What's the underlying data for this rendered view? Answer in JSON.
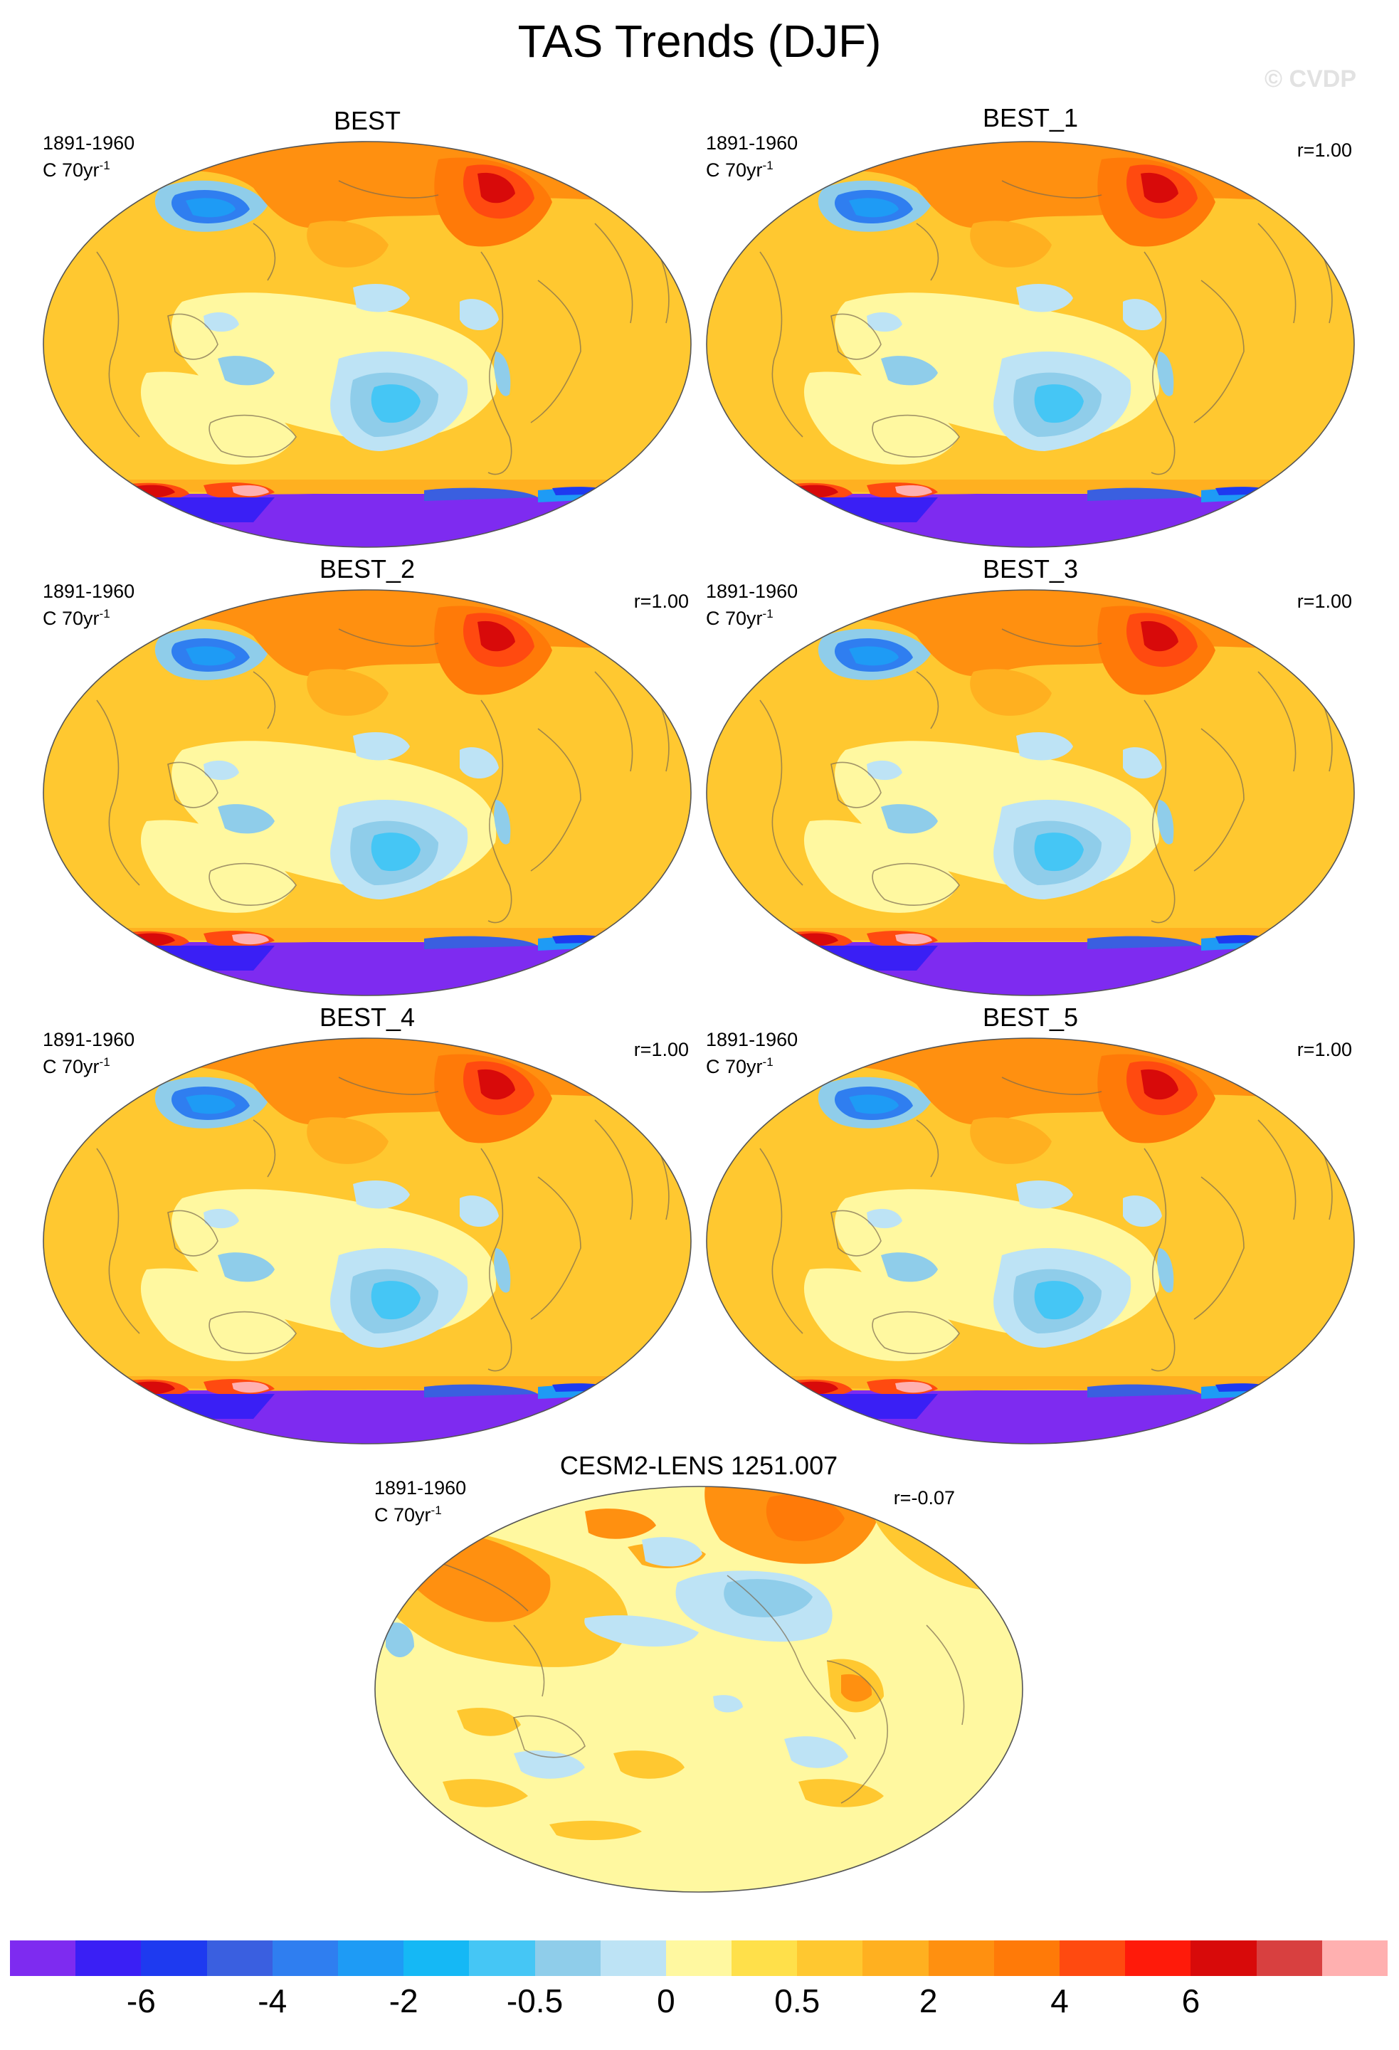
{
  "figure": {
    "title": "TAS Trends (DJF)",
    "credit": "© CVDP"
  },
  "panels": [
    {
      "title": "BEST",
      "period": "1891-1960",
      "units_main": "C 70yr",
      "units_sup": "-1",
      "corr": ""
    },
    {
      "title": "BEST_1",
      "period": "1891-1960",
      "units_main": "C 70yr",
      "units_sup": "-1",
      "corr": "r=1.00"
    },
    {
      "title": "BEST_2",
      "period": "1891-1960",
      "units_main": "C 70yr",
      "units_sup": "-1",
      "corr": "r=1.00"
    },
    {
      "title": "BEST_3",
      "period": "1891-1960",
      "units_main": "C 70yr",
      "units_sup": "-1",
      "corr": "r=1.00"
    },
    {
      "title": "BEST_4",
      "period": "1891-1960",
      "units_main": "C 70yr",
      "units_sup": "-1",
      "corr": "r=1.00"
    },
    {
      "title": "BEST_5",
      "period": "1891-1960",
      "units_main": "C 70yr",
      "units_sup": "-1",
      "corr": "r=1.00"
    },
    {
      "title": "CESM2-LENS 1251.007",
      "period": "1891-1960",
      "units_main": "C 70yr",
      "units_sup": "-1",
      "corr": "r=-0.07"
    }
  ],
  "colorbar": {
    "colors": [
      "#7e2bf0",
      "#3a1ff5",
      "#1e3af0",
      "#3a5fe0",
      "#2f7ef0",
      "#1e9bf5",
      "#15b8f5",
      "#45c6f5",
      "#8fcdea",
      "#bde3f5",
      "#fff8a0",
      "#ffe04a",
      "#ffc830",
      "#ffb020",
      "#ff9010",
      "#ff7a08",
      "#ff4a10",
      "#ff1a0a",
      "#d80a0a",
      "#d84040",
      "#ffb0b0"
    ],
    "tick_labels": [
      "-6",
      "-4",
      "-2",
      "-0.5",
      "0",
      "0.5",
      "2",
      "4",
      "6"
    ]
  }
}
